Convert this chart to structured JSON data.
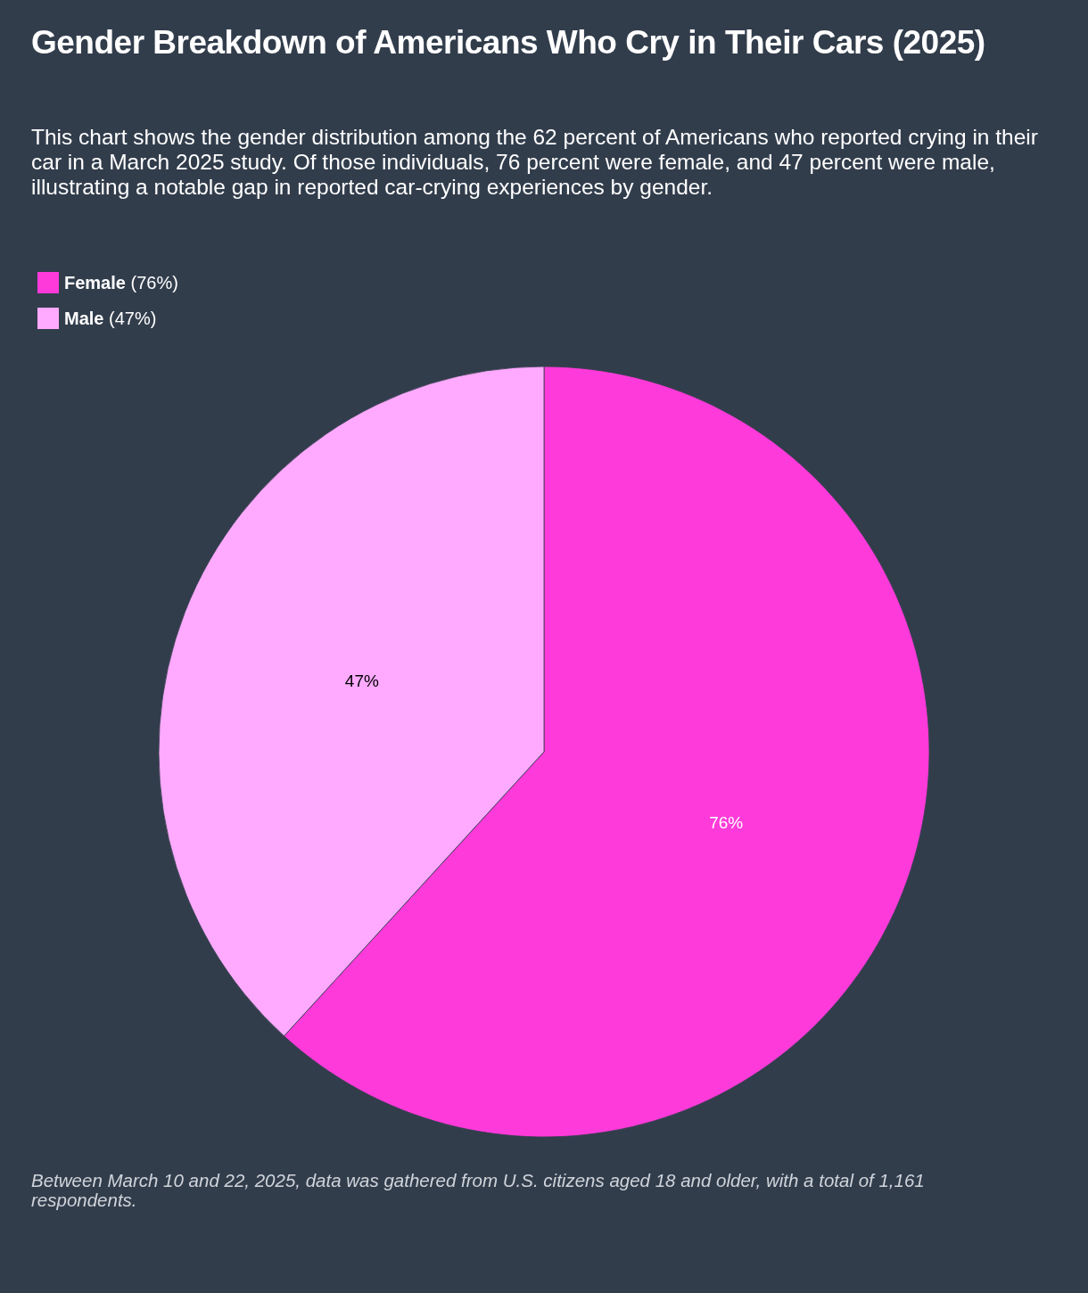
{
  "chart_data": {
    "type": "pie",
    "title": "Gender Breakdown of Americans Who Cry in Their Cars (2025)",
    "subtitle": "This chart shows the gender distribution among the 62 percent of Americans who reported crying in their car in a March 2025 study. Of those individuals, 76 percent were female, and 47 percent were male, illustrating a notable gap in reported car-crying experiences by gender.",
    "categories": [
      "Female (76%)",
      "Male (47%)"
    ],
    "values": [
      76,
      47
    ],
    "value_labels": [
      "76%",
      "47%"
    ],
    "colors": [
      "#ff3ada",
      "#ffaaff"
    ],
    "legend": "top left",
    "annotations": [
      "Between March 10 and 22, 2025, data was gathered from U.S. citizens aged 18 and older, with a total of 1,161 respondents."
    ]
  }
}
